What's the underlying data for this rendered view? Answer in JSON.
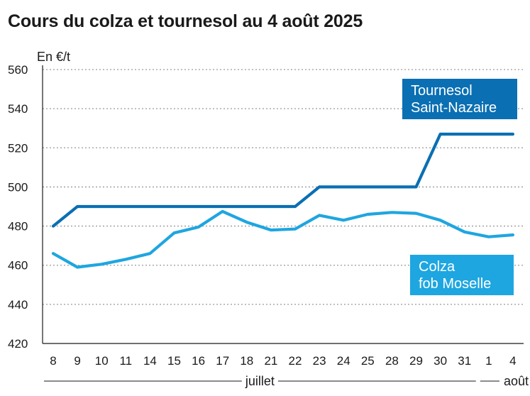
{
  "chart_data": {
    "type": "line",
    "title": "Cours du colza et tournesol au 4 août 2025",
    "ylabel": "En €/t",
    "ylim": [
      420,
      560
    ],
    "yticks": [
      420,
      440,
      460,
      480,
      500,
      520,
      540,
      560
    ],
    "categories": [
      "8",
      "9",
      "10",
      "11",
      "14",
      "15",
      "16",
      "17",
      "18",
      "21",
      "22",
      "23",
      "24",
      "25",
      "28",
      "29",
      "30",
      "31",
      "1",
      "4"
    ],
    "months": [
      {
        "label": "juillet",
        "from": 0,
        "to": 17
      },
      {
        "label": "août",
        "from": 18,
        "to": 19
      }
    ],
    "grid": "horizontal-dotted",
    "series": [
      {
        "name": "Tournesol Saint-Nazaire",
        "name_lines": [
          "Tournesol",
          "Saint-Nazaire"
        ],
        "color": "#0a6fb3",
        "values": [
          480,
          490,
          490,
          490,
          490,
          490,
          490,
          490,
          490,
          490,
          490,
          500,
          500,
          500,
          500,
          500,
          527,
          527,
          527,
          527
        ]
      },
      {
        "name": "Colza fob Moselle",
        "name_lines": [
          "Colza",
          "fob Moselle"
        ],
        "color": "#1ea6e0",
        "values": [
          466,
          459,
          460.5,
          463,
          466,
          476.5,
          479.5,
          487.5,
          482,
          478,
          478.5,
          485.5,
          483,
          486,
          487,
          486.5,
          483,
          477,
          474.5,
          475.5
        ]
      }
    ]
  }
}
